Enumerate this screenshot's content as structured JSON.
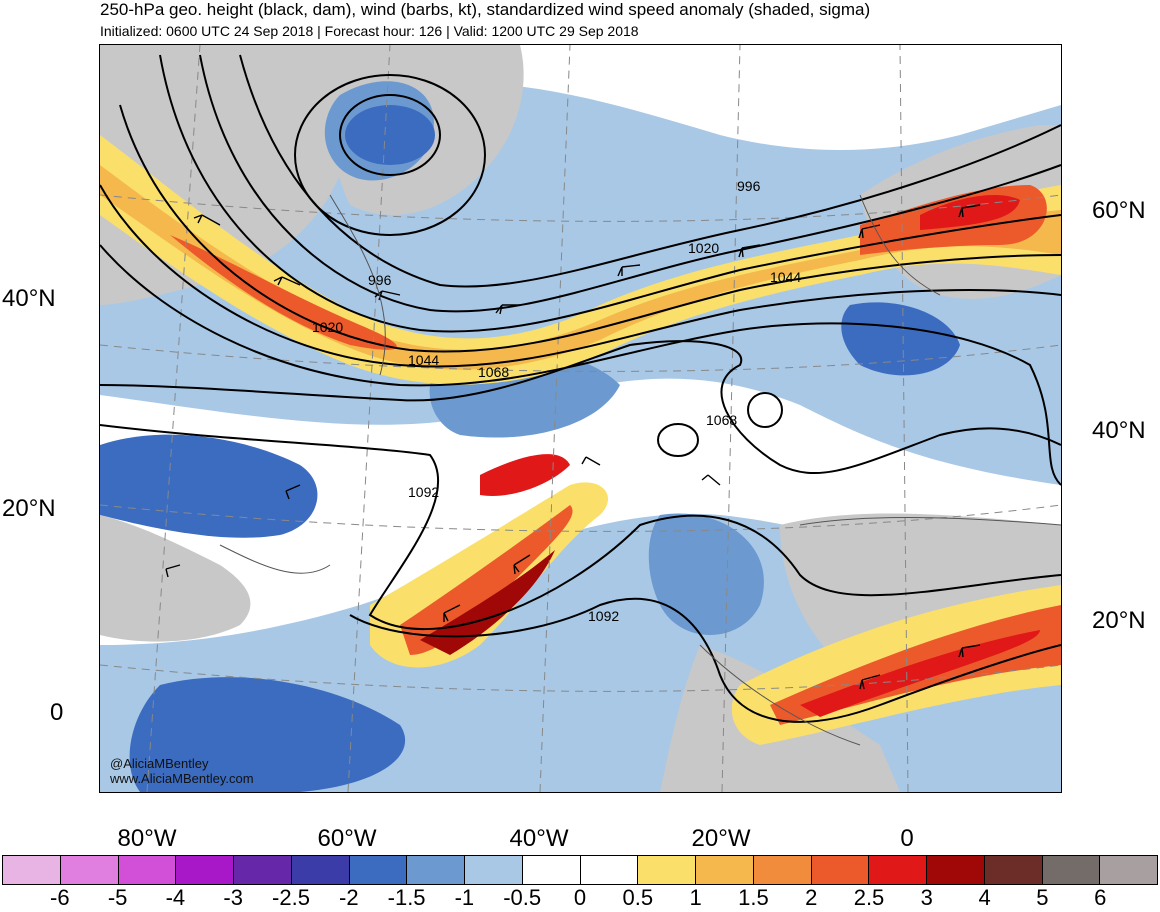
{
  "header": {
    "title": "250-hPa geo. height (black, dam), wind (barbs, kt), standardized wind speed anomaly (shaded, sigma)",
    "subtitle": "Initialized: 0600 UTC 24 Sep 2018 | Forecast hour: 126 | Valid: 1200 UTC 29 Sep 2018"
  },
  "map": {
    "left_lat_labels": [
      "40°N",
      "20°N",
      "0"
    ],
    "right_lat_labels": [
      "60°N",
      "40°N",
      "20°N"
    ],
    "lon_labels": [
      "80°W",
      "60°W",
      "40°W",
      "20°W",
      "0"
    ],
    "contour_labels": [
      "996",
      "1020",
      "1044",
      "1068",
      "1068",
      "1092",
      "1092",
      "996",
      "1020",
      "1044"
    ],
    "credit": [
      "@AliciaMBentley",
      "www.AliciaMBentley.com"
    ],
    "colors": {
      "land": "#c8c8c8",
      "coastline": "#555555",
      "contour": "#000000",
      "grid": "#888888"
    }
  },
  "colorbar": {
    "labels": [
      "-6",
      "-5",
      "-4",
      "-3",
      "-2.5",
      "-2",
      "-1.5",
      "-1",
      "-0.5",
      "0",
      "0.5",
      "1",
      "1.5",
      "2",
      "2.5",
      "3",
      "4",
      "5",
      "6"
    ],
    "colors": [
      "#e8b4e4",
      "#e07fe0",
      "#d24fd8",
      "#a818c8",
      "#6628a8",
      "#3c3ca8",
      "#3c6cc0",
      "#6c9ad0",
      "#a8c8e6",
      "#ffffff",
      "#ffffff",
      "#fae06a",
      "#f4b84c",
      "#f08c3c",
      "#ec5a2c",
      "#e01818",
      "#a00808",
      "#6c2c28",
      "#746c68",
      "#a8a0a0"
    ]
  }
}
